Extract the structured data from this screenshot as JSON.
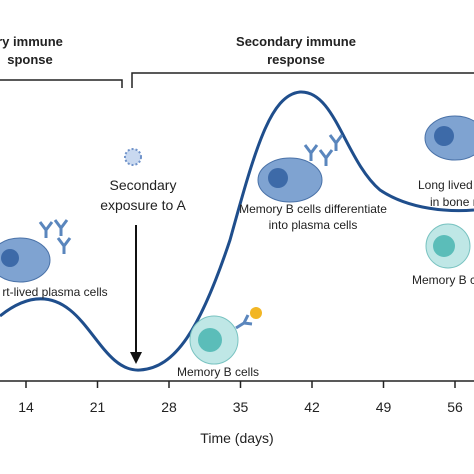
{
  "brackets": [
    {
      "lines": [
        "ry immune",
        "sponse"
      ]
    },
    {
      "lines": [
        "Secondary immune",
        "response"
      ]
    }
  ],
  "exposure": {
    "lines": [
      "Secondary",
      "exposure to A"
    ]
  },
  "cells": [
    {
      "lines": [
        "rt-lived plasma cells"
      ]
    },
    {
      "lines": [
        "Memory B cells differentiate",
        "into plasma cells"
      ]
    },
    {
      "lines": [
        "Long lived plas",
        "in bone ma"
      ]
    },
    {
      "lines": [
        "Memory B ce"
      ]
    },
    {
      "lines": [
        "Memory B cells"
      ]
    }
  ],
  "axis": {
    "ticks": [
      14,
      21,
      28,
      35,
      42,
      49,
      56
    ],
    "label": "Time (days)"
  }
}
